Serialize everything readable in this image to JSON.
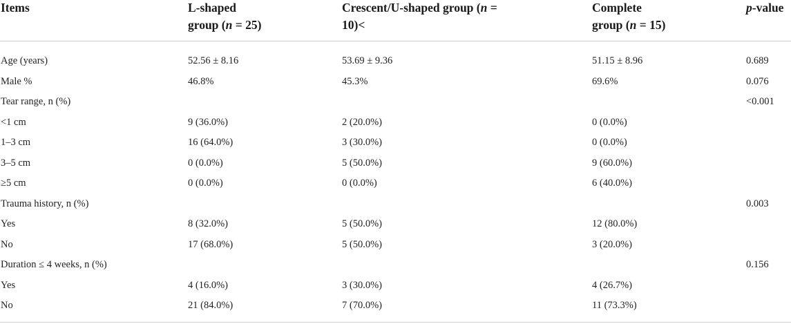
{
  "header": {
    "items": "Items",
    "lshaped_l1": "L-shaped",
    "lshaped_l2a": "group (",
    "lshaped_n": "n",
    "lshaped_l2b": " = 25)",
    "crescent_l1a": "Crescent/U-shaped group (",
    "crescent_n": "n",
    "crescent_l1b": " =",
    "crescent_l2": "10)<",
    "complete_l1": "Complete",
    "complete_l2a": "group (",
    "complete_n": "n",
    "complete_l2b": " = 15)",
    "pvalue_p": "p",
    "pvalue_rest": "-value"
  },
  "rows": [
    {
      "item": "Age (years)",
      "l": "52.56 ± 8.16",
      "c": "53.69 ± 9.36",
      "comp": "51.15 ± 8.96",
      "p": "0.689"
    },
    {
      "item": "Male %",
      "l": "46.8%",
      "c": "45.3%",
      "comp": "69.6%",
      "p": "0.076"
    },
    {
      "item": "Tear range, n (%)",
      "l": "",
      "c": "",
      "comp": "",
      "p": "<0.001"
    },
    {
      "item": "<1 cm",
      "l": "9 (36.0%)",
      "c": "2 (20.0%)",
      "comp": "0 (0.0%)",
      "p": ""
    },
    {
      "item": "1–3 cm",
      "l": "16 (64.0%)",
      "c": "3 (30.0%)",
      "comp": "0 (0.0%)",
      "p": ""
    },
    {
      "item": "3–5 cm",
      "l": "0 (0.0%)",
      "c": "5 (50.0%)",
      "comp": "9 (60.0%)",
      "p": ""
    },
    {
      "item": "≥5 cm",
      "l": "0 (0.0%)",
      "c": "0 (0.0%)",
      "comp": "6 (40.0%)",
      "p": ""
    },
    {
      "item": "Trauma history, n (%)",
      "l": "",
      "c": "",
      "comp": "",
      "p": "0.003"
    },
    {
      "item": "Yes",
      "l": "8 (32.0%)",
      "c": "5 (50.0%)",
      "comp": "12 (80.0%)",
      "p": ""
    },
    {
      "item": "No",
      "l": "17 (68.0%)",
      "c": "5 (50.0%)",
      "comp": "3 (20.0%)",
      "p": ""
    },
    {
      "item": "Duration ≤ 4 weeks, n (%)",
      "l": "",
      "c": "",
      "comp": "",
      "p": "0.156"
    },
    {
      "item": "Yes",
      "l": "4 (16.0%)",
      "c": "3 (30.0%)",
      "comp": "4 (26.7%)",
      "p": ""
    },
    {
      "item": "No",
      "l": "21 (84.0%)",
      "c": "7 (70.0%)",
      "comp": "11 (73.3%)",
      "p": ""
    }
  ]
}
